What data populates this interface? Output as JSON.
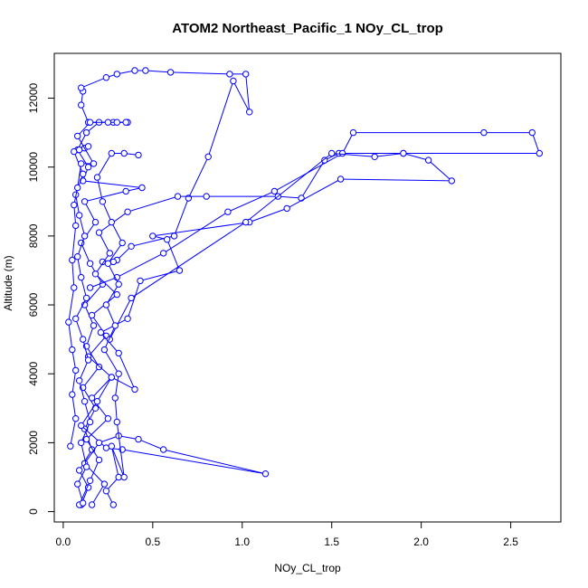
{
  "chart_data": {
    "type": "scatter",
    "title": "ATOM2 Northeast_Pacific_1 NOy_CL_trop",
    "xlabel": "NOy_CL_trop",
    "ylabel": "Altitude (m)",
    "xlim": [
      -0.05,
      2.78
    ],
    "ylim": [
      -300,
      13300
    ],
    "x_ticks": [
      0.0,
      0.5,
      1.0,
      1.5,
      2.0,
      2.5
    ],
    "x_tick_labels": [
      "0.0",
      "0.5",
      "1.0",
      "1.5",
      "2.0",
      "2.5"
    ],
    "y_ticks": [
      0,
      2000,
      4000,
      6000,
      8000,
      10000,
      12000
    ],
    "y_tick_labels": [
      "0",
      "2000",
      "4000",
      "6000",
      "8000",
      "10000",
      "12000"
    ],
    "grid": false,
    "series_color": "#0000ff",
    "marker": "open-circle",
    "connected": true,
    "series": [
      {
        "values": [
          [
            0.1,
            200
          ],
          [
            0.14,
            700
          ],
          [
            0.09,
            1200
          ],
          [
            0.16,
            1800
          ],
          [
            0.12,
            2400
          ],
          [
            0.18,
            3000
          ],
          [
            0.11,
            3600
          ],
          [
            0.2,
            4200
          ],
          [
            0.13,
            4800
          ],
          [
            0.17,
            5400
          ],
          [
            0.12,
            6000
          ],
          [
            0.22,
            6600
          ],
          [
            0.15,
            7200
          ],
          [
            0.1,
            7800
          ],
          [
            0.18,
            8400
          ],
          [
            0.12,
            9000
          ],
          [
            0.35,
            9300
          ],
          [
            0.44,
            9400
          ],
          [
            0.11,
            9600
          ],
          [
            0.14,
            10000
          ],
          [
            0.08,
            10500
          ],
          [
            0.13,
            11000
          ],
          [
            0.2,
            11300
          ],
          [
            0.28,
            11300
          ],
          [
            0.36,
            11300
          ],
          [
            0.14,
            11300
          ],
          [
            0.1,
            11800
          ],
          [
            0.11,
            12200
          ],
          [
            0.1,
            12300
          ],
          [
            0.24,
            12600
          ],
          [
            0.3,
            12700
          ],
          [
            0.4,
            12800
          ],
          [
            0.46,
            12800
          ],
          [
            0.6,
            12750
          ],
          [
            0.93,
            12700
          ],
          [
            1.02,
            12700
          ],
          [
            1.04,
            11600
          ],
          [
            0.95,
            12500
          ],
          [
            0.81,
            10300
          ],
          [
            0.7,
            9100
          ],
          [
            0.62,
            8000
          ],
          [
            0.38,
            7700
          ],
          [
            0.3,
            7300
          ],
          [
            0.22,
            7250
          ],
          [
            0.28,
            7250
          ]
        ]
      },
      {
        "values": [
          [
            0.09,
            200
          ],
          [
            0.15,
            900
          ],
          [
            0.2,
            1500
          ],
          [
            0.13,
            2100
          ],
          [
            0.25,
            2700
          ],
          [
            0.16,
            3300
          ],
          [
            0.27,
            3900
          ],
          [
            0.14,
            4500
          ],
          [
            0.24,
            5100
          ],
          [
            0.16,
            5700
          ],
          [
            0.3,
            6300
          ],
          [
            0.18,
            6900
          ],
          [
            0.26,
            7500
          ],
          [
            0.2,
            8100
          ],
          [
            0.36,
            8700
          ],
          [
            0.64,
            9150
          ],
          [
            0.8,
            9150
          ],
          [
            1.2,
            9150
          ],
          [
            1.33,
            9100
          ],
          [
            1.46,
            10200
          ],
          [
            1.54,
            10400
          ],
          [
            1.9,
            10400
          ],
          [
            2.66,
            10400
          ],
          [
            2.62,
            11000
          ],
          [
            2.35,
            11000
          ],
          [
            1.62,
            11000
          ],
          [
            1.56,
            10400
          ],
          [
            1.18,
            9300
          ],
          [
            0.92,
            8700
          ],
          [
            0.56,
            7500
          ],
          [
            0.3,
            6800
          ],
          [
            0.15,
            6500
          ]
        ]
      },
      {
        "values": [
          [
            0.16,
            200
          ],
          [
            0.23,
            800
          ],
          [
            0.12,
            1400
          ],
          [
            0.2,
            2000
          ],
          [
            0.31,
            2200
          ],
          [
            0.42,
            2100
          ],
          [
            0.56,
            1800
          ],
          [
            1.13,
            1100
          ],
          [
            0.33,
            1800
          ],
          [
            0.24,
            1850
          ],
          [
            0.1,
            2500
          ],
          [
            0.19,
            3200
          ],
          [
            0.27,
            3900
          ],
          [
            0.4,
            3550
          ],
          [
            0.31,
            4600
          ],
          [
            0.21,
            5200
          ],
          [
            0.36,
            5600
          ],
          [
            0.43,
            6700
          ],
          [
            0.65,
            7000
          ],
          [
            0.58,
            7900
          ],
          [
            0.5,
            8000
          ],
          [
            1.04,
            8400
          ],
          [
            1.25,
            8800
          ],
          [
            1.55,
            9650
          ],
          [
            2.17,
            9600
          ],
          [
            2.04,
            10200
          ],
          [
            1.9,
            10400
          ],
          [
            1.74,
            10300
          ],
          [
            1.5,
            10400
          ],
          [
            1.02,
            8400
          ],
          [
            0.38,
            6200
          ],
          [
            0.26,
            5000
          ]
        ]
      },
      {
        "values": [
          [
            0.11,
            250
          ],
          [
            0.08,
            800
          ],
          [
            0.13,
            1300
          ],
          [
            0.1,
            2000
          ],
          [
            0.15,
            2600
          ],
          [
            0.12,
            3200
          ],
          [
            0.09,
            3800
          ],
          [
            0.14,
            4400
          ],
          [
            0.11,
            5000
          ],
          [
            0.07,
            5600
          ],
          [
            0.13,
            6200
          ],
          [
            0.1,
            6800
          ],
          [
            0.08,
            7400
          ],
          [
            0.12,
            8000
          ],
          [
            0.09,
            8600
          ],
          [
            0.07,
            9200
          ],
          [
            0.11,
            9800
          ],
          [
            0.06,
            10450
          ],
          [
            0.09,
            10500
          ],
          [
            0.12,
            10550
          ],
          [
            0.14,
            10600
          ]
        ]
      },
      {
        "values": [
          [
            0.28,
            200
          ],
          [
            0.24,
            600
          ],
          [
            0.31,
            1000
          ],
          [
            0.27,
            1900
          ],
          [
            0.34,
            1000
          ],
          [
            0.3,
            2600
          ],
          [
            0.29,
            3300
          ],
          [
            0.31,
            4000
          ],
          [
            0.23,
            4700
          ],
          [
            0.29,
            5400
          ],
          [
            0.24,
            6000
          ],
          [
            0.31,
            6600
          ],
          [
            0.25,
            7200
          ],
          [
            0.33,
            7800
          ],
          [
            0.27,
            8400
          ],
          [
            0.22,
            9000
          ],
          [
            0.19,
            9700
          ],
          [
            0.27,
            10400
          ],
          [
            0.34,
            10400
          ],
          [
            0.42,
            10350
          ]
        ]
      },
      {
        "values": [
          [
            0.04,
            1900
          ],
          [
            0.07,
            2700
          ],
          [
            0.05,
            3400
          ],
          [
            0.07,
            4100
          ],
          [
            0.05,
            4700
          ],
          [
            0.03,
            5500
          ],
          [
            0.06,
            6500
          ],
          [
            0.05,
            7300
          ],
          [
            0.07,
            8300
          ],
          [
            0.06,
            8900
          ],
          [
            0.08,
            9400
          ],
          [
            0.1,
            10100
          ],
          [
            0.17,
            10100
          ],
          [
            0.08,
            10900
          ],
          [
            0.15,
            11300
          ],
          [
            0.25,
            11300
          ],
          [
            0.3,
            11300
          ],
          [
            0.35,
            11300
          ]
        ]
      }
    ]
  }
}
